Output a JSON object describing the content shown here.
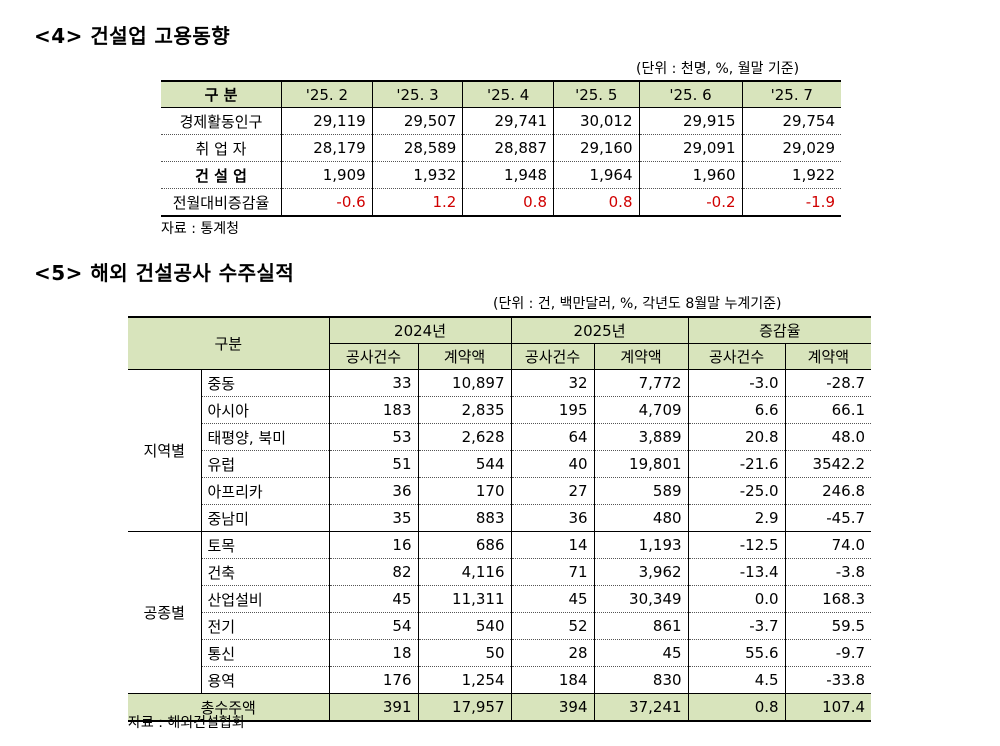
{
  "section4": {
    "title": "<4> 건설업 고용동향",
    "unit": "(단위 : 천명, %, 월말 기준)",
    "headers": [
      "구 분",
      "'25. 2",
      "'25. 3",
      "'25. 4",
      "'25. 5",
      "'25. 6",
      "'25. 7"
    ],
    "rows": [
      {
        "label": "경제활동인구",
        "values": [
          "29,119",
          "29,507",
          "29,741",
          "30,012",
          "29,915",
          "29,754"
        ]
      },
      {
        "label": "취 업 자",
        "values": [
          "28,179",
          "28,589",
          "28,887",
          "29,160",
          "29,091",
          "29,029"
        ]
      },
      {
        "label": "건 설 업",
        "values": [
          "1,909",
          "1,932",
          "1,948",
          "1,964",
          "1,960",
          "1,922"
        ]
      },
      {
        "label": "전월대비증감율",
        "values": [
          "-0.6",
          "1.2",
          "0.8",
          "0.8",
          "-0.2",
          "-1.9"
        ]
      }
    ],
    "source": "자료 : 통계청"
  },
  "section5": {
    "title": "<5> 해외 건설공사 수주실적",
    "unit": "(단위 : 건, 백만달러, %, 각년도 8월말 누계기준)",
    "header_gubun": "구분",
    "header_years": [
      "2024년",
      "2025년",
      "증감율"
    ],
    "header_sub": [
      "공사건수",
      "계약액",
      "공사건수",
      "계약액",
      "공사건수",
      "계약액"
    ],
    "groups": [
      {
        "name": "지역별",
        "rows": [
          {
            "item": "중동",
            "values": [
              "33",
              "10,897",
              "32",
              "7,772",
              "-3.0",
              "-28.7"
            ]
          },
          {
            "item": "아시아",
            "values": [
              "183",
              "2,835",
              "195",
              "4,709",
              "6.6",
              "66.1"
            ]
          },
          {
            "item": "태평양, 북미",
            "values": [
              "53",
              "2,628",
              "64",
              "3,889",
              "20.8",
              "48.0"
            ]
          },
          {
            "item": "유럽",
            "values": [
              "51",
              "544",
              "40",
              "19,801",
              "-21.6",
              "3542.2"
            ]
          },
          {
            "item": "아프리카",
            "values": [
              "36",
              "170",
              "27",
              "589",
              "-25.0",
              "246.8"
            ]
          },
          {
            "item": "중남미",
            "values": [
              "35",
              "883",
              "36",
              "480",
              "2.9",
              "-45.7"
            ]
          }
        ]
      },
      {
        "name": "공종별",
        "rows": [
          {
            "item": "토목",
            "values": [
              "16",
              "686",
              "14",
              "1,193",
              "-12.5",
              "74.0"
            ]
          },
          {
            "item": "건축",
            "values": [
              "82",
              "4,116",
              "71",
              "3,962",
              "-13.4",
              "-3.8"
            ]
          },
          {
            "item": "산업설비",
            "values": [
              "45",
              "11,311",
              "45",
              "30,349",
              "0.0",
              "168.3"
            ]
          },
          {
            "item": "전기",
            "values": [
              "54",
              "540",
              "52",
              "861",
              "-3.7",
              "59.5"
            ]
          },
          {
            "item": "통신",
            "values": [
              "18",
              "50",
              "28",
              "45",
              "55.6",
              "-9.7"
            ]
          },
          {
            "item": "용역",
            "values": [
              "176",
              "1,254",
              "184",
              "830",
              "4.5",
              "-33.8"
            ]
          }
        ]
      }
    ],
    "total": {
      "label": "총수주액",
      "values": [
        "391",
        "17,957",
        "394",
        "37,241",
        "0.8",
        "107.4"
      ]
    },
    "source": "자료 : 해외건설협회"
  }
}
